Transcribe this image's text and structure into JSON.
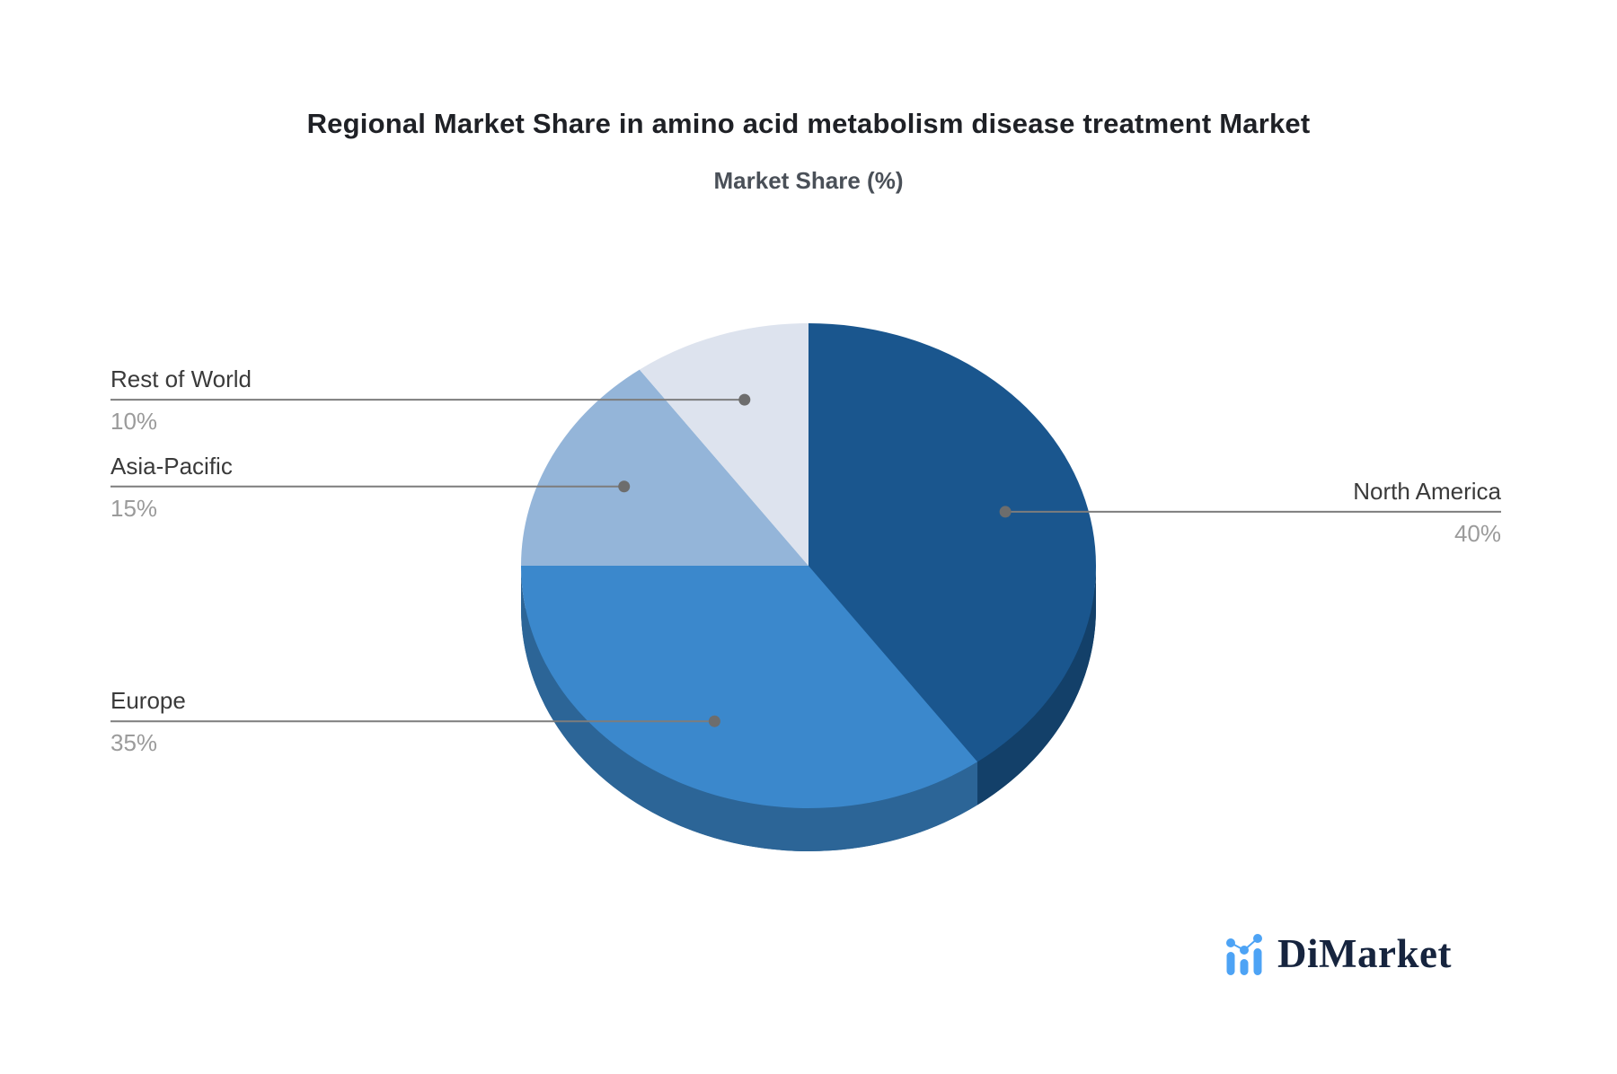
{
  "title": "Regional Market Share in amino acid metabolism disease treatment Market",
  "subtitle": "Market Share (%)",
  "logo": {
    "brand": "DiMarket",
    "icon": "bar-chart-trend-icon",
    "icon_color": "#4da3f5",
    "text_color": "#16243e"
  },
  "chart_data": {
    "type": "pie",
    "title": "Regional Market Share in amino acid metabolism disease treatment Market",
    "subtitle": "Market Share (%)",
    "unit": "%",
    "effect": "3d",
    "start_angle_deg": 0,
    "direction": "clockwise",
    "legend": "none",
    "slices": [
      {
        "label": "North America",
        "value": 40,
        "display": "40%",
        "color": "#1a568e",
        "side": "right"
      },
      {
        "label": "Europe",
        "value": 35,
        "display": "35%",
        "color": "#3b88cc",
        "side": "left"
      },
      {
        "label": "Asia-Pacific",
        "value": 15,
        "display": "15%",
        "color": "#94b5d9",
        "side": "left"
      },
      {
        "label": "Rest of World",
        "value": 10,
        "display": "10%",
        "color": "#dde3ee",
        "side": "left"
      }
    ],
    "label_style": {
      "name_color": "#3a3a3a",
      "value_color": "#9b9b9b",
      "line_color": "#7d7d7d",
      "dot_color": "#6d6d6d"
    }
  }
}
